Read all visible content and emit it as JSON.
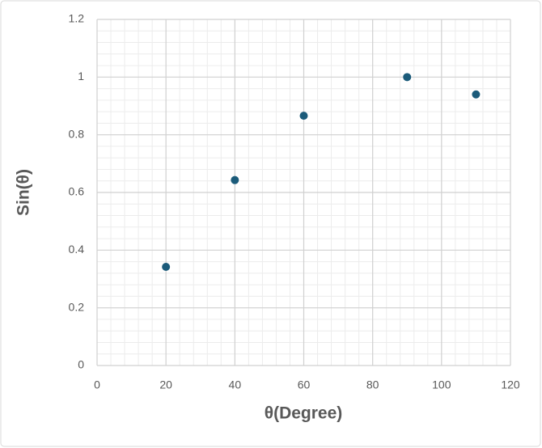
{
  "chart_data": {
    "type": "scatter",
    "x_label": "θ(Degree)",
    "y_label": "Sin(θ)",
    "x": [
      20,
      40,
      60,
      90,
      110
    ],
    "series": [
      {
        "color": "#1b5b7a",
        "values": [
          0.342,
          0.643,
          0.866,
          1.0,
          0.94
        ]
      }
    ],
    "xlim": [
      0,
      120
    ],
    "xticks": [
      0,
      20,
      40,
      60,
      80,
      100,
      120
    ],
    "ylim": [
      0,
      1.2
    ],
    "yticks": [
      0,
      0.2,
      0.4,
      0.6,
      0.8,
      1,
      1.2
    ],
    "grid": true,
    "minor_grid": true
  }
}
